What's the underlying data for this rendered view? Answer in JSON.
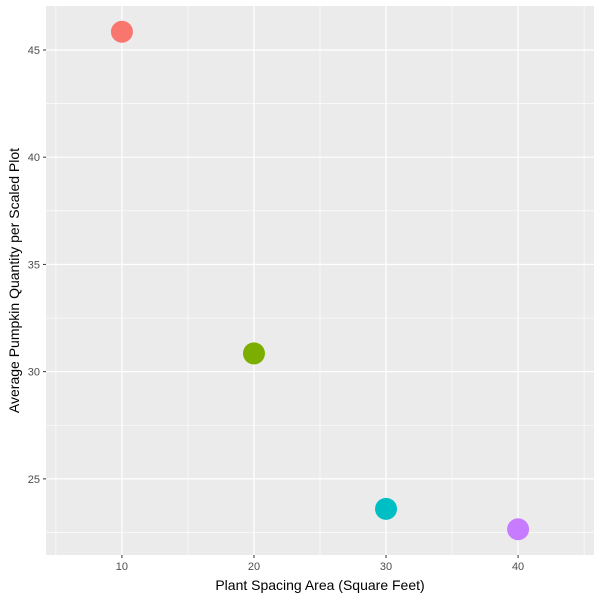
{
  "chart_data": {
    "type": "scatter",
    "title": "",
    "xlabel": "Plant Spacing Area (Square Feet)",
    "ylabel": "Average Pumpkin Quantity per Scaled Plot",
    "xlim": [
      4.25,
      45.75
    ],
    "ylim": [
      21.45,
      47.05
    ],
    "xticks": [
      10,
      20,
      30,
      40
    ],
    "yticks": [
      25,
      30,
      35,
      40,
      45
    ],
    "xtick_labels": [
      "10",
      "20",
      "30",
      "40"
    ],
    "ytick_labels": [
      "25",
      "30",
      "35",
      "40",
      "45"
    ],
    "grid": true,
    "legend": "none",
    "points": [
      {
        "x": 10,
        "y": 45.85,
        "color": "#F8766D"
      },
      {
        "x": 20,
        "y": 30.85,
        "color": "#7CAE00"
      },
      {
        "x": 30,
        "y": 23.6,
        "color": "#00BFC4"
      },
      {
        "x": 40,
        "y": 22.65,
        "color": "#C77CFF"
      }
    ],
    "panel_background": "#EBEBEB",
    "grid_color": "#FFFFFF"
  }
}
